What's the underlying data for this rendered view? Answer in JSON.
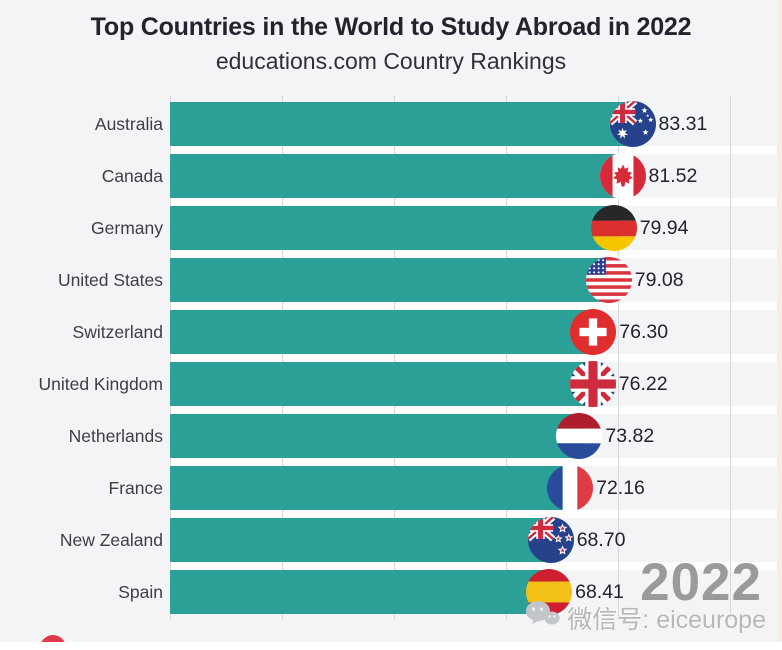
{
  "header": {
    "title": "Top Countries in the World to Study Abroad in 2022",
    "subtitle": "educations.com Country Rankings"
  },
  "chart_data": {
    "type": "bar",
    "orientation": "horizontal",
    "title": "Top Countries in the World to Study Abroad in 2022",
    "subtitle": "educations.com Country Rankings",
    "xlabel": "",
    "ylabel": "",
    "xlim": [
      0,
      100
    ],
    "gridline_values": [
      0,
      20,
      40,
      60,
      80,
      100
    ],
    "grid": true,
    "legend": false,
    "bar_color": "#2aa096",
    "categories": [
      "Australia",
      "Canada",
      "Germany",
      "United States",
      "Switzerland",
      "United Kingdom",
      "Netherlands",
      "France",
      "New Zealand",
      "Spain"
    ],
    "values": [
      83.31,
      81.52,
      79.94,
      79.08,
      76.3,
      76.22,
      73.82,
      72.16,
      68.7,
      68.41
    ],
    "value_labels": [
      "83.31",
      "81.52",
      "79.94",
      "79.08",
      "76.30",
      "76.22",
      "73.82",
      "72.16",
      "68.70",
      "68.41"
    ],
    "flags": [
      "australia",
      "canada",
      "germany",
      "united-states",
      "switzerland",
      "united-kingdom",
      "netherlands",
      "france",
      "new-zealand",
      "spain"
    ]
  },
  "watermarks": {
    "year": "2022",
    "wechat_text": "微信号: eiceurope",
    "wechat_icon": "wechat-icon"
  }
}
